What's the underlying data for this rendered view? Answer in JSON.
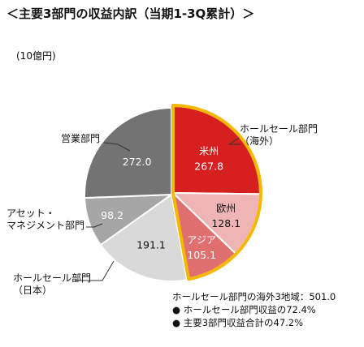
{
  "title": "＜主要3部門の収益内訳（当期1-3Q累計）＞",
  "unit": "(10億円)",
  "chart_data": {
    "type": "pie",
    "start_angle_deg": 0,
    "direction": "clockwise",
    "slices": [
      {
        "label": "米州",
        "value": 267.8,
        "display": "267.8",
        "color": "#d62020",
        "text_color": "#ffffff",
        "group": "overseas"
      },
      {
        "label": "欧州",
        "value": 128.1,
        "display": "128.1",
        "color": "#efb4b4",
        "text_color": "#111111",
        "group": "overseas"
      },
      {
        "label": "アジア",
        "value": 105.1,
        "display": "105.1",
        "color": "#e07070",
        "text_color": "#ffffff",
        "group": "overseas"
      },
      {
        "label": "",
        "value": 191.1,
        "display": "191.1",
        "color": "#d9d9d9",
        "text_color": "#111111"
      },
      {
        "label": "",
        "value": 98.2,
        "display": "98.2",
        "color": "#a6a6a6",
        "text_color": "#ffffff"
      },
      {
        "label": "",
        "value": 272.0,
        "display": "272.0",
        "color": "#737373",
        "text_color": "#ffffff"
      }
    ],
    "highlight_color": "#f5b800",
    "external_labels": {
      "wholesale_overseas": [
        "ホールセール部門",
        "（海外）"
      ],
      "wholesale_japan": [
        "ホールセール部門",
        "（日本）"
      ],
      "asset_management": [
        "アセット・",
        "マネジメント部門"
      ],
      "retail": [
        "営業部門"
      ]
    },
    "note": [
      "ホールセール部門の海外3地域：501.0",
      "●  ホールセール部門収益の72.4%",
      "●  主要3部門収益合計の47.2%"
    ]
  }
}
